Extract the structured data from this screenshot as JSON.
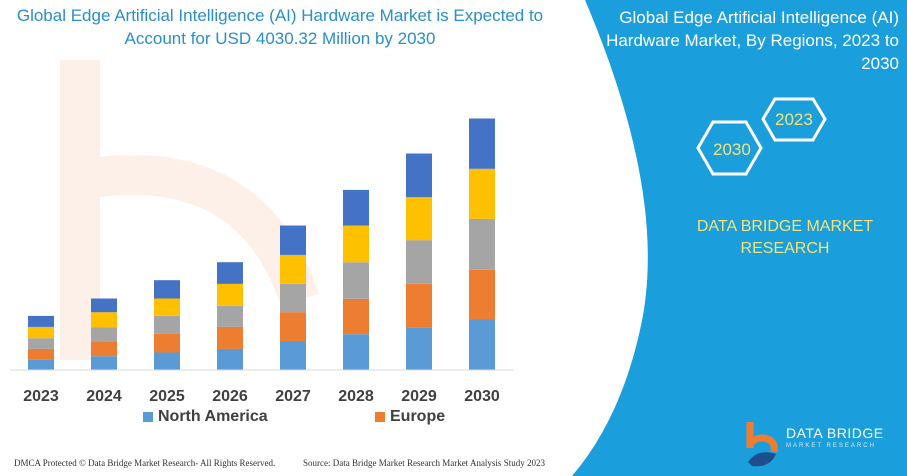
{
  "header": {
    "title": "Global Edge Artificial Intelligence (AI) Hardware Market is Expected to Account for USD 4030.32 Million by 2030"
  },
  "side_panel": {
    "title": "Global Edge Artificial Intelligence (AI) Hardware Market, By Regions, 2023 to 2030",
    "hex_left": "2030",
    "hex_right": "2023",
    "brand": "DATA BRIDGE MARKET RESEARCH",
    "logo_text": "DATA BRIDGE",
    "logo_subtext": "MARKET RESEARCH",
    "color": "#1a9fdc"
  },
  "footer": {
    "copyright": "DMCA Protected © Data Bridge Market Research- All Rights Reserved.",
    "source": "Source: Data Bridge Market Research Market Analysis Study 2023"
  },
  "chart_data": {
    "type": "bar",
    "stacked": true,
    "title": "",
    "xlabel": "",
    "ylabel": "",
    "grid": false,
    "legend_position": "bottom",
    "categories": [
      "2023",
      "2024",
      "2025",
      "2026",
      "2027",
      "2028",
      "2029",
      "2030"
    ],
    "series": [
      {
        "name": "North America",
        "color": "#5b9bd5",
        "values": [
          9.6,
          13.3,
          17,
          20.6,
          28,
          35.3,
          42.3,
          50
        ]
      },
      {
        "name": "Europe",
        "color": "#ed7d31",
        "values": [
          11,
          15,
          18.6,
          22,
          29.3,
          35.3,
          43.3,
          49.7
        ]
      },
      {
        "color": "#a5a5a5",
        "values": [
          10.7,
          14,
          18,
          21,
          28.3,
          36.7,
          43.7,
          51
        ]
      },
      {
        "color": "#ffc000",
        "values": [
          11.3,
          15,
          17.4,
          22,
          29,
          36.7,
          43,
          50
        ]
      },
      {
        "color": "#4472c4",
        "values": [
          11,
          13.7,
          18.3,
          21.7,
          29.4,
          35.6,
          43.7,
          50.3
        ]
      }
    ]
  }
}
